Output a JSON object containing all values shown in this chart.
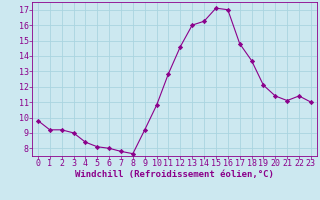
{
  "x": [
    0,
    1,
    2,
    3,
    4,
    5,
    6,
    7,
    8,
    9,
    10,
    11,
    12,
    13,
    14,
    15,
    16,
    17,
    18,
    19,
    20,
    21,
    22,
    23
  ],
  "y": [
    9.8,
    9.2,
    9.2,
    9.0,
    8.4,
    8.1,
    8.0,
    7.8,
    7.65,
    9.2,
    10.8,
    12.85,
    14.6,
    16.0,
    16.25,
    17.1,
    17.0,
    14.8,
    13.7,
    12.1,
    11.4,
    11.1,
    11.4,
    11.0
  ],
  "line_color": "#8B008B",
  "marker_color": "#8B008B",
  "bg_color": "#cce8f0",
  "grid_color": "#aad4e0",
  "xlabel": "Windchill (Refroidissement éolien,°C)",
  "ylim": [
    7.5,
    17.5
  ],
  "xlim": [
    -0.5,
    23.5
  ],
  "yticks": [
    8,
    9,
    10,
    11,
    12,
    13,
    14,
    15,
    16,
    17
  ],
  "xticks": [
    0,
    1,
    2,
    3,
    4,
    5,
    6,
    7,
    8,
    9,
    10,
    11,
    12,
    13,
    14,
    15,
    16,
    17,
    18,
    19,
    20,
    21,
    22,
    23
  ],
  "label_fontsize": 6.5,
  "tick_fontsize": 6.0
}
